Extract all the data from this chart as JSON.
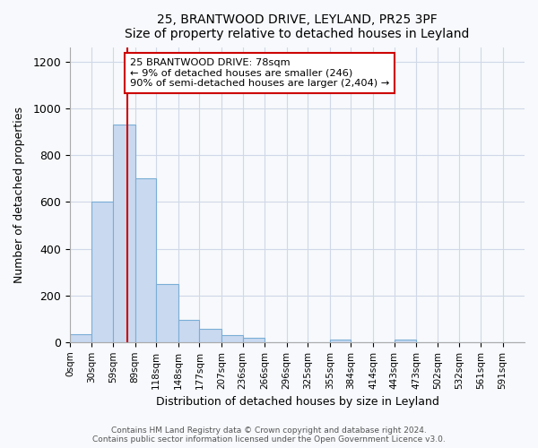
{
  "title": "25, BRANTWOOD DRIVE, LEYLAND, PR25 3PF",
  "subtitle": "Size of property relative to detached houses in Leyland",
  "xlabel": "Distribution of detached houses by size in Leyland",
  "ylabel": "Number of detached properties",
  "bar_labels": [
    "0sqm",
    "30sqm",
    "59sqm",
    "89sqm",
    "118sqm",
    "148sqm",
    "177sqm",
    "207sqm",
    "236sqm",
    "266sqm",
    "296sqm",
    "325sqm",
    "355sqm",
    "384sqm",
    "414sqm",
    "443sqm",
    "473sqm",
    "502sqm",
    "532sqm",
    "561sqm",
    "591sqm"
  ],
  "bin_edges": [
    0,
    30,
    59,
    89,
    118,
    148,
    177,
    207,
    236,
    266,
    296,
    325,
    355,
    384,
    414,
    443,
    473,
    502,
    532,
    561,
    591,
    621
  ],
  "bar_heights": [
    35,
    600,
    930,
    700,
    248,
    95,
    55,
    30,
    18,
    0,
    0,
    0,
    10,
    0,
    0,
    10,
    0,
    0,
    0,
    0,
    0
  ],
  "bar_color": "#c9d9f0",
  "bar_edgecolor": "#7aaed6",
  "grid_color": "#d0d8e8",
  "vline_x": 78,
  "vline_color": "#cc0000",
  "annotation_text": "25 BRANTWOOD DRIVE: 78sqm\n← 9% of detached houses are smaller (246)\n90% of semi-detached houses are larger (2,404) →",
  "annotation_box_color": "#cc0000",
  "ylim": [
    0,
    1260
  ],
  "yticks": [
    0,
    200,
    400,
    600,
    800,
    1000,
    1200
  ],
  "footer_line1": "Contains HM Land Registry data © Crown copyright and database right 2024.",
  "footer_line2": "Contains public sector information licensed under the Open Government Licence v3.0.",
  "bg_color": "#f7f9fc",
  "plot_bg_color": "#f7f9fc"
}
